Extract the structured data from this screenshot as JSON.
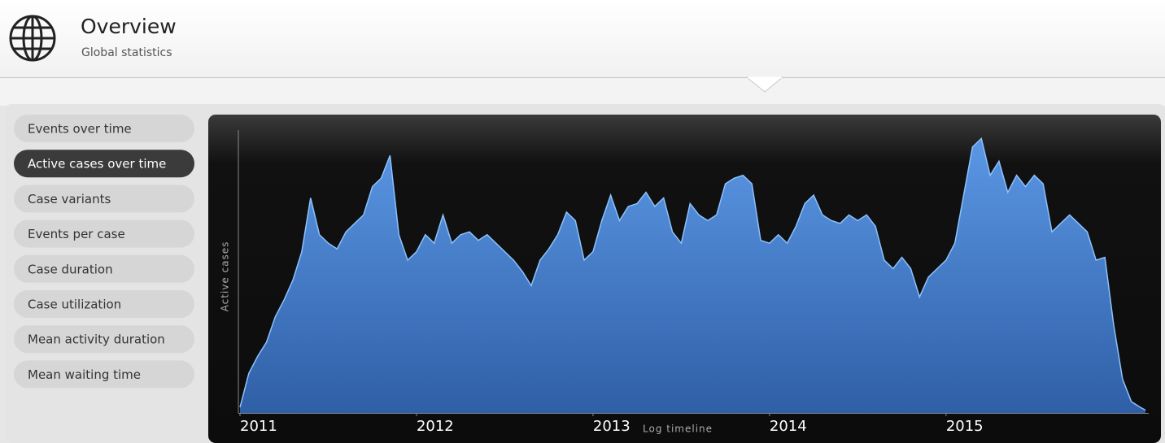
{
  "header": {
    "title": "Overview",
    "subtitle": "Global statistics"
  },
  "sidebar": {
    "items": [
      {
        "label": "Events over time",
        "selected": false
      },
      {
        "label": "Active cases over time",
        "selected": true
      },
      {
        "label": "Case variants",
        "selected": false
      },
      {
        "label": "Events per case",
        "selected": false
      },
      {
        "label": "Case duration",
        "selected": false
      },
      {
        "label": "Case utilization",
        "selected": false
      },
      {
        "label": "Mean activity duration",
        "selected": false
      },
      {
        "label": "Mean waiting time",
        "selected": false
      }
    ]
  },
  "chart_data": {
    "type": "area",
    "x_label": "Log timeline",
    "y_label": "Active cases",
    "color": "#3f7fd6",
    "xlim": [
      2011,
      2016.13
    ],
    "xticks": [
      2011,
      2012,
      2013,
      2014,
      2015
    ],
    "ylim": [
      0,
      100
    ],
    "x": [
      2011,
      2011.05,
      2011.1,
      2011.15,
      2011.2,
      2011.25,
      2011.3,
      2011.35,
      2011.4,
      2011.45,
      2011.5,
      2011.55,
      2011.6,
      2011.65,
      2011.7,
      2011.75,
      2011.8,
      2011.85,
      2011.9,
      2011.95,
      2012,
      2012.05,
      2012.1,
      2012.15,
      2012.2,
      2012.25,
      2012.3,
      2012.35,
      2012.4,
      2012.45,
      2012.5,
      2012.55,
      2012.6,
      2012.65,
      2012.7,
      2012.75,
      2012.8,
      2012.85,
      2012.9,
      2012.95,
      2013,
      2013.05,
      2013.1,
      2013.15,
      2013.2,
      2013.25,
      2013.3,
      2013.35,
      2013.4,
      2013.45,
      2013.5,
      2013.55,
      2013.6,
      2013.65,
      2013.7,
      2013.75,
      2013.8,
      2013.85,
      2013.9,
      2013.95,
      2014,
      2014.05,
      2014.1,
      2014.15,
      2014.2,
      2014.25,
      2014.3,
      2014.35,
      2014.4,
      2014.45,
      2014.5,
      2014.55,
      2014.6,
      2014.65,
      2014.7,
      2014.75,
      2014.8,
      2014.85,
      2014.9,
      2014.95,
      2015,
      2015.05,
      2015.1,
      2015.15,
      2015.2,
      2015.25,
      2015.3,
      2015.35,
      2015.4,
      2015.45,
      2015.5,
      2015.55,
      2015.6,
      2015.65,
      2015.7,
      2015.75,
      2015.8,
      2015.85,
      2015.9,
      2015.95,
      2016,
      2016.05,
      2016.1,
      2016.13
    ],
    "values": [
      2,
      14,
      20,
      25,
      34,
      40,
      47,
      57,
      76,
      63,
      60,
      58,
      64,
      67,
      70,
      80,
      83,
      91,
      63,
      54,
      57,
      63,
      60,
      70,
      60,
      63,
      64,
      61,
      63,
      60,
      57,
      54,
      50,
      45,
      54,
      58,
      63,
      71,
      68,
      54,
      57,
      68,
      77,
      68,
      73,
      74,
      78,
      73,
      76,
      64,
      60,
      74,
      70,
      68,
      70,
      81,
      83,
      84,
      81,
      61,
      60,
      63,
      60,
      66,
      74,
      77,
      70,
      68,
      67,
      70,
      68,
      70,
      66,
      54,
      51,
      55,
      51,
      41,
      48,
      51,
      54,
      60,
      77,
      94,
      97,
      84,
      89,
      78,
      84,
      80,
      84,
      81,
      64,
      67,
      70,
      67,
      64,
      54,
      55,
      31,
      12,
      4,
      2,
      1
    ]
  }
}
